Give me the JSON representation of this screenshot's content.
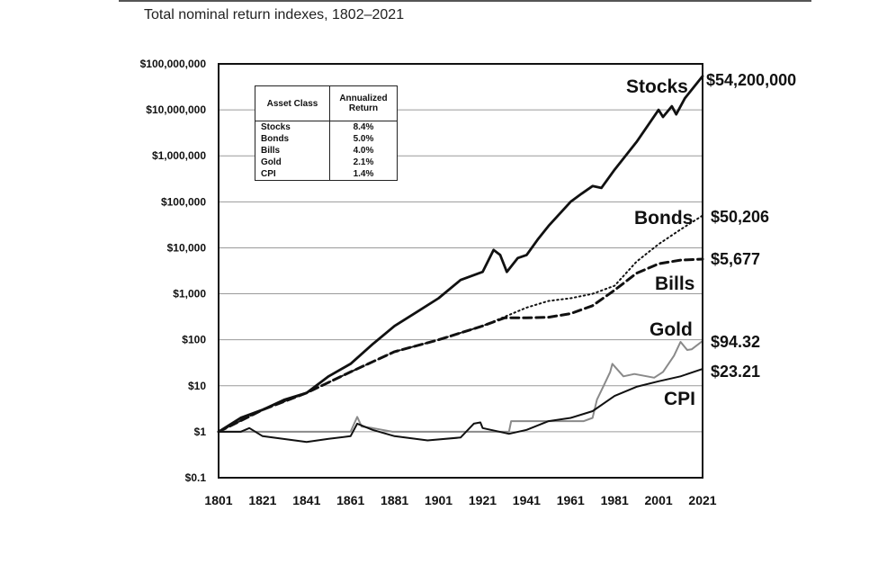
{
  "chart_data": {
    "type": "line",
    "title": "Total nominal return indexes, 1802–2021",
    "xlabel": "",
    "ylabel": "",
    "y_scale": "log",
    "ylim": [
      0.1,
      100000000
    ],
    "xlim": [
      1801,
      2021
    ],
    "grid": true,
    "y_ticks": [
      {
        "value": 100000000,
        "label": "$100,000,000"
      },
      {
        "value": 10000000,
        "label": "$10,000,000"
      },
      {
        "value": 1000000,
        "label": "$1,000,000"
      },
      {
        "value": 100000,
        "label": "$100,000"
      },
      {
        "value": 10000,
        "label": "$10,000"
      },
      {
        "value": 1000,
        "label": "$1,000"
      },
      {
        "value": 100,
        "label": "$100"
      },
      {
        "value": 10,
        "label": "$10"
      },
      {
        "value": 1,
        "label": "$1"
      },
      {
        "value": 0.1,
        "label": "$0.1"
      }
    ],
    "x_ticks": [
      "1801",
      "1821",
      "1841",
      "1861",
      "1881",
      "1901",
      "1921",
      "1941",
      "1961",
      "1981",
      "2001",
      "2021"
    ],
    "series": [
      {
        "name": "Stocks",
        "end_label": "$54,200,000",
        "style": "solid-thick",
        "color": "#111111",
        "x": [
          1801,
          1811,
          1821,
          1831,
          1841,
          1851,
          1861,
          1871,
          1881,
          1891,
          1901,
          1911,
          1921,
          1926,
          1929,
          1932,
          1937,
          1941,
          1946,
          1951,
          1961,
          1966,
          1971,
          1975,
          1981,
          1991,
          2001,
          2003,
          2007,
          2009,
          2013,
          2021
        ],
        "y": [
          1,
          2,
          3,
          5,
          7,
          16,
          30,
          80,
          200,
          400,
          800,
          2000,
          3000,
          9000,
          7000,
          3000,
          6000,
          7000,
          15000,
          30000,
          100000,
          150000,
          220000,
          200000,
          500000,
          2000000,
          10000000,
          7000000,
          12000000,
          8000000,
          18000000,
          54200000
        ]
      },
      {
        "name": "Bonds",
        "end_label": "$50,206",
        "style": "dotted",
        "color": "#111111",
        "x": [
          1801,
          1821,
          1841,
          1861,
          1881,
          1901,
          1921,
          1941,
          1951,
          1961,
          1971,
          1981,
          1991,
          2001,
          2011,
          2021
        ],
        "y": [
          1,
          3,
          7,
          20,
          55,
          100,
          200,
          500,
          700,
          800,
          1000,
          1500,
          5000,
          12000,
          25000,
          50206
        ]
      },
      {
        "name": "Bills",
        "end_label": "$5,677",
        "style": "dashed",
        "color": "#111111",
        "x": [
          1801,
          1821,
          1841,
          1861,
          1881,
          1901,
          1921,
          1931,
          1941,
          1951,
          1961,
          1971,
          1981,
          1991,
          2001,
          2011,
          2021
        ],
        "y": [
          1,
          3,
          7,
          20,
          55,
          100,
          200,
          300,
          300,
          310,
          370,
          550,
          1200,
          2800,
          4500,
          5400,
          5677
        ]
      },
      {
        "name": "Gold",
        "end_label": "$94.32",
        "style": "solid",
        "color": "#8a8a8a",
        "x": [
          1801,
          1861,
          1864,
          1866,
          1871,
          1880,
          1921,
          1933,
          1934,
          1967,
          1971,
          1973,
          1976,
          1979,
          1980,
          1985,
          1990,
          1999,
          2003,
          2008,
          2011,
          2014,
          2016,
          2021
        ],
        "y": [
          1,
          1,
          2.1,
          1.3,
          1.2,
          1,
          1,
          1,
          1.7,
          1.7,
          2,
          5,
          10,
          20,
          30,
          16,
          18,
          15,
          20,
          45,
          90,
          60,
          62,
          94.32
        ]
      },
      {
        "name": "CPI",
        "end_label": "$23.21",
        "style": "solid",
        "color": "#111111",
        "x": [
          1801,
          1811,
          1815,
          1821,
          1841,
          1851,
          1861,
          1864,
          1871,
          1881,
          1896,
          1911,
          1917,
          1920,
          1921,
          1933,
          1941,
          1951,
          1961,
          1971,
          1981,
          1991,
          2001,
          2011,
          2021
        ],
        "y": [
          1,
          1,
          1.2,
          0.8,
          0.6,
          0.7,
          0.8,
          1.5,
          1.1,
          0.8,
          0.65,
          0.75,
          1.5,
          1.6,
          1.2,
          0.9,
          1.1,
          1.7,
          2,
          2.8,
          6,
          9.5,
          12.5,
          16,
          23.21
        ]
      }
    ],
    "legend_table": {
      "headers": [
        "Asset Class",
        "Annualized Return"
      ],
      "rows": [
        [
          "Stocks",
          "8.4%"
        ],
        [
          "Bonds",
          "5.0%"
        ],
        [
          "Bills",
          "4.0%"
        ],
        [
          "Gold",
          "2.1%"
        ],
        [
          "CPI",
          "1.4%"
        ]
      ]
    }
  }
}
